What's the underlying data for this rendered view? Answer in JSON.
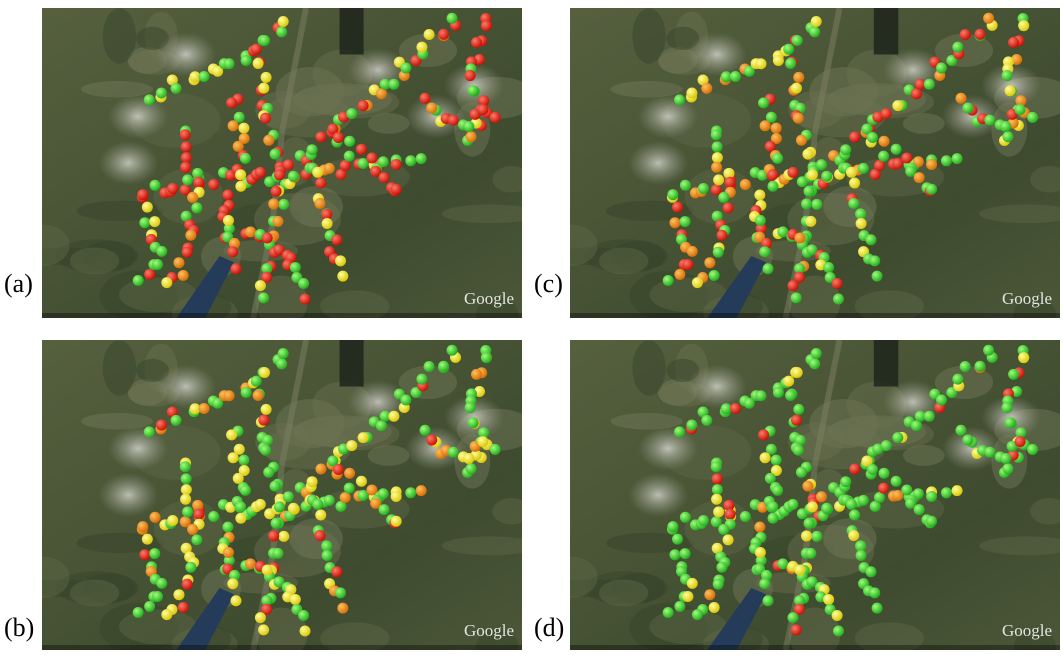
{
  "panels": [
    {
      "label": "(a)",
      "watermark": "Google"
    },
    {
      "label": "(b)",
      "watermark": "Google"
    },
    {
      "label": "(c)",
      "watermark": "Google"
    },
    {
      "label": "(d)",
      "watermark": "Google"
    }
  ]
}
